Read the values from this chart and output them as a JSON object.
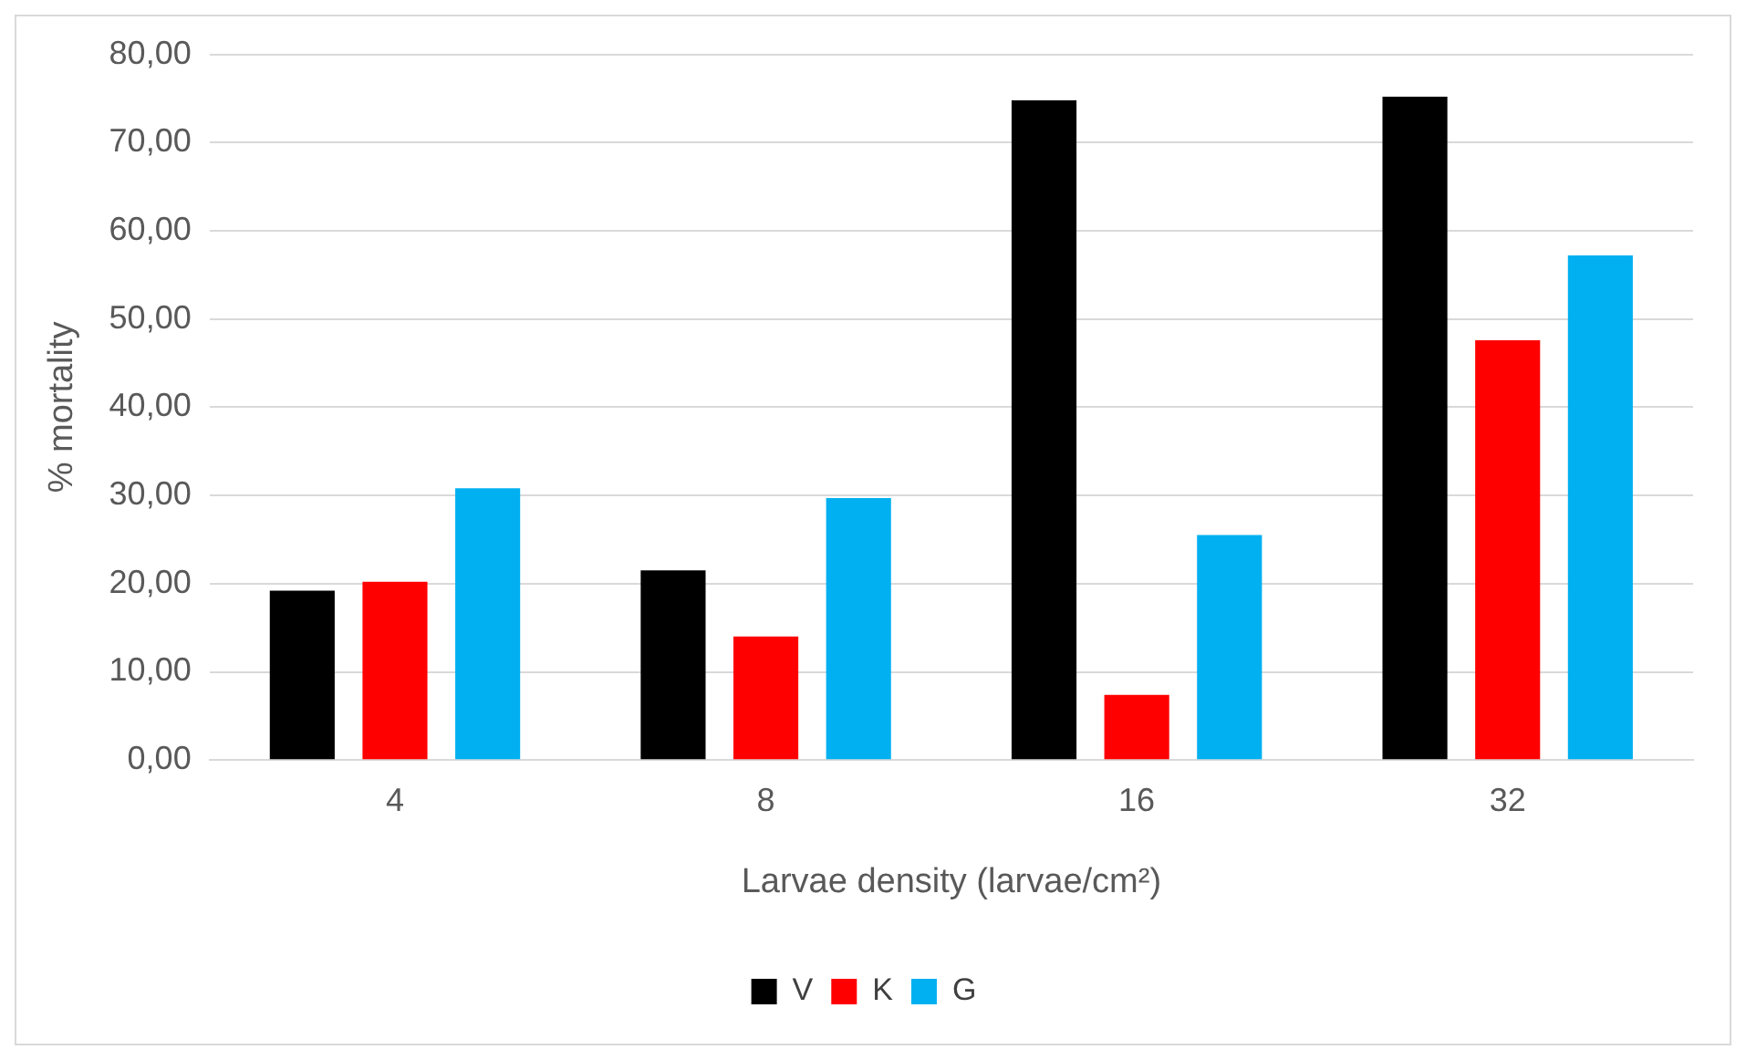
{
  "chart_data": {
    "type": "bar",
    "xlabel": "Larvae density (larvae/cm²)",
    "ylabel": "% mortality",
    "categories": [
      "4",
      "8",
      "16",
      "32"
    ],
    "series": [
      {
        "name": "V",
        "color": "#000000",
        "values": [
          19.2,
          21.5,
          74.8,
          75.2
        ]
      },
      {
        "name": "K",
        "color": "#ff0000",
        "values": [
          20.2,
          14.0,
          7.4,
          47.6
        ]
      },
      {
        "name": "G",
        "color": "#00b0f0",
        "values": [
          30.8,
          29.7,
          25.5,
          57.2
        ]
      }
    ],
    "ylim": [
      0,
      80
    ],
    "yticks": [
      {
        "value": 0,
        "label": "0,00"
      },
      {
        "value": 10,
        "label": "10,00"
      },
      {
        "value": 20,
        "label": "20,00"
      },
      {
        "value": 30,
        "label": "30,00"
      },
      {
        "value": 40,
        "label": "40,00"
      },
      {
        "value": 50,
        "label": "50,00"
      },
      {
        "value": 60,
        "label": "60,00"
      },
      {
        "value": 70,
        "label": "70,00"
      },
      {
        "value": 80,
        "label": "80,00"
      }
    ],
    "grid": "y",
    "legend": "bottom"
  }
}
